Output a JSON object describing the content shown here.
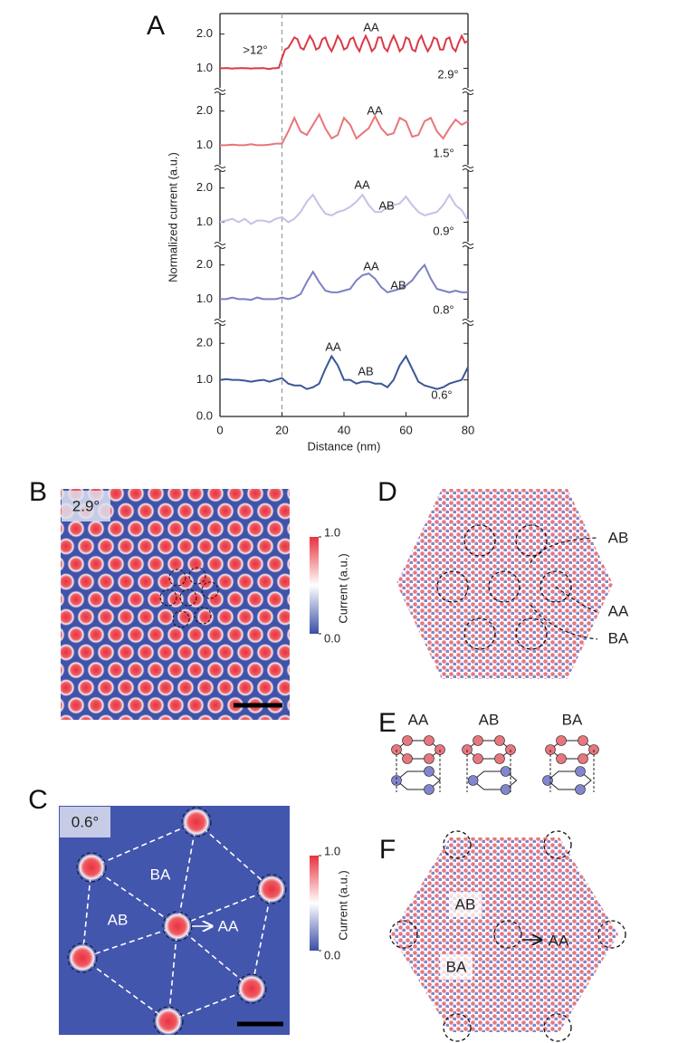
{
  "chart_data": [
    {
      "type": "line",
      "x": [
        0,
        1,
        2,
        3,
        4,
        5,
        6,
        7,
        8,
        9,
        10,
        11,
        12,
        13,
        14,
        15,
        16,
        17,
        18,
        19,
        20,
        21,
        22,
        23,
        24,
        25,
        26,
        27,
        28,
        29,
        30,
        31,
        32,
        33,
        34,
        35,
        36,
        37,
        38,
        39,
        40,
        41,
        42,
        43,
        44,
        45,
        46,
        47,
        48,
        49,
        50,
        51,
        52,
        53,
        54,
        55,
        56,
        57,
        58,
        59,
        60,
        61,
        62,
        63,
        64,
        65,
        66,
        67,
        68,
        69,
        70,
        71,
        72,
        73,
        74,
        75,
        76,
        77,
        78,
        79,
        80
      ],
      "xlim": [
        0,
        80
      ],
      "ylim": [
        0.35,
        2.6
      ],
      "yticks": [
        {
          "value": 1,
          "label": "1.0"
        },
        {
          "value": 2,
          "label": "2.0"
        }
      ],
      "vline_x": 20,
      "series": [
        {
          "name": "2.9°",
          "color": "#d93a48",
          "values": [
            1.0,
            1.0,
            1.01,
            1.0,
            0.99,
            1.0,
            1.0,
            1.01,
            1.0,
            1.0,
            0.99,
            1.0,
            1.0,
            1.0,
            1.01,
            0.99,
            0.98,
            1.0,
            1.0,
            1.02,
            1.3,
            1.55,
            1.6,
            1.75,
            1.9,
            1.85,
            1.6,
            1.55,
            1.75,
            1.95,
            1.8,
            1.55,
            1.6,
            1.85,
            1.9,
            1.65,
            1.5,
            1.7,
            1.95,
            1.8,
            1.55,
            1.6,
            1.85,
            1.9,
            1.65,
            1.5,
            1.75,
            1.95,
            1.75,
            1.5,
            1.6,
            1.9,
            1.9,
            1.6,
            1.5,
            1.75,
            1.95,
            1.75,
            1.5,
            1.6,
            1.9,
            1.85,
            1.55,
            1.5,
            1.8,
            1.95,
            1.7,
            1.5,
            1.65,
            1.9,
            1.85,
            1.55,
            1.55,
            1.85,
            1.9,
            1.6,
            1.5,
            1.75,
            1.95,
            1.75,
            1.8
          ]
        }
      ],
      "annotations": [
        ">12°",
        "AA"
      ]
    },
    {
      "type": "line",
      "x": [
        0,
        2,
        4,
        6,
        8,
        10,
        12,
        14,
        16,
        18,
        20,
        22,
        24,
        26,
        28,
        30,
        32,
        34,
        36,
        38,
        40,
        42,
        44,
        46,
        48,
        50,
        52,
        54,
        56,
        58,
        60,
        62,
        64,
        66,
        68,
        70,
        72,
        74,
        76,
        78,
        80
      ],
      "xlim": [
        0,
        80
      ],
      "ylim": [
        0.35,
        2.6
      ],
      "yticks": [
        {
          "value": 1,
          "label": "1.0"
        },
        {
          "value": 2,
          "label": "2.0"
        }
      ],
      "series": [
        {
          "name": "1.5°",
          "color": "#e8767a",
          "values": [
            1.0,
            1.0,
            1.02,
            1.0,
            1.0,
            1.03,
            1.0,
            1.0,
            1.02,
            1.05,
            1.05,
            1.4,
            1.8,
            1.4,
            1.3,
            1.6,
            1.9,
            1.5,
            1.2,
            1.3,
            1.8,
            1.6,
            1.2,
            1.35,
            1.5,
            1.85,
            1.5,
            1.3,
            1.35,
            1.8,
            1.7,
            1.25,
            1.3,
            1.7,
            1.8,
            1.4,
            1.2,
            1.5,
            1.75,
            1.6,
            1.7
          ]
        }
      ],
      "annotations": [
        "AA"
      ]
    },
    {
      "type": "line",
      "x": [
        0,
        2,
        4,
        6,
        8,
        10,
        12,
        14,
        16,
        18,
        20,
        22,
        24,
        26,
        28,
        30,
        32,
        34,
        36,
        38,
        40,
        42,
        44,
        46,
        48,
        50,
        52,
        54,
        56,
        58,
        60,
        62,
        64,
        66,
        68,
        70,
        72,
        74,
        76,
        78,
        80
      ],
      "xlim": [
        0,
        80
      ],
      "ylim": [
        0.35,
        2.6
      ],
      "yticks": [
        {
          "value": 1,
          "label": "1.0"
        },
        {
          "value": 2,
          "label": "2.0"
        }
      ],
      "series": [
        {
          "name": "0.9°",
          "color": "#c4c2e6",
          "values": [
            1.0,
            1.05,
            1.1,
            1.0,
            1.1,
            0.95,
            1.05,
            1.05,
            1.0,
            1.1,
            1.15,
            1.0,
            1.1,
            1.3,
            1.6,
            1.8,
            1.5,
            1.25,
            1.2,
            1.3,
            1.35,
            1.45,
            1.6,
            1.8,
            1.5,
            1.3,
            1.3,
            1.45,
            1.5,
            1.55,
            1.75,
            1.5,
            1.3,
            1.2,
            1.25,
            1.3,
            1.5,
            1.8,
            1.5,
            1.35,
            1.05
          ]
        }
      ],
      "annotations": [
        "AA",
        "AB"
      ]
    },
    {
      "type": "line",
      "x": [
        0,
        2,
        4,
        6,
        8,
        10,
        12,
        14,
        16,
        18,
        20,
        22,
        24,
        26,
        28,
        30,
        32,
        34,
        36,
        38,
        40,
        42,
        44,
        46,
        48,
        50,
        52,
        54,
        56,
        58,
        60,
        62,
        64,
        66,
        68,
        70,
        72,
        74,
        76,
        78,
        80
      ],
      "xlim": [
        0,
        80
      ],
      "ylim": [
        0.35,
        2.6
      ],
      "yticks": [
        {
          "value": 1,
          "label": "1.0"
        },
        {
          "value": 2,
          "label": "2.0"
        }
      ],
      "series": [
        {
          "name": "0.8°",
          "color": "#7d80c2",
          "values": [
            1.0,
            1.0,
            1.05,
            1.0,
            1.0,
            0.98,
            1.05,
            1.0,
            1.0,
            1.0,
            1.05,
            1.0,
            1.05,
            1.15,
            1.5,
            1.8,
            1.5,
            1.25,
            1.2,
            1.2,
            1.25,
            1.3,
            1.55,
            1.7,
            1.75,
            1.6,
            1.35,
            1.2,
            1.25,
            1.3,
            1.4,
            1.55,
            1.8,
            2.0,
            1.6,
            1.3,
            1.25,
            1.2,
            1.25,
            1.2,
            1.2
          ]
        }
      ],
      "annotations": [
        "AA",
        "AB"
      ]
    },
    {
      "type": "line",
      "x": [
        0,
        2,
        4,
        6,
        8,
        10,
        12,
        14,
        16,
        18,
        20,
        22,
        24,
        26,
        28,
        30,
        32,
        34,
        36,
        38,
        40,
        42,
        44,
        46,
        48,
        50,
        52,
        54,
        56,
        58,
        60,
        62,
        64,
        66,
        68,
        70,
        72,
        74,
        76,
        78,
        80
      ],
      "xlim": [
        0,
        80
      ],
      "ylim": [
        0,
        2.6
      ],
      "yticks": [
        {
          "value": 0,
          "label": "0.0"
        },
        {
          "value": 1,
          "label": "1.0"
        },
        {
          "value": 2,
          "label": "2.0"
        }
      ],
      "xticks": [
        0,
        20,
        40,
        60,
        80
      ],
      "xlabel": "Distance (nm)",
      "series": [
        {
          "name": "0.6°",
          "color": "#3a5796",
          "values": [
            1.0,
            1.02,
            1.0,
            1.0,
            0.98,
            0.95,
            0.98,
            1.0,
            0.95,
            1.0,
            1.05,
            0.9,
            0.85,
            0.85,
            0.75,
            0.8,
            0.9,
            1.3,
            1.65,
            1.4,
            1.0,
            1.0,
            0.9,
            0.95,
            0.95,
            0.9,
            0.9,
            0.8,
            1.0,
            1.4,
            1.65,
            1.3,
            0.95,
            0.85,
            0.8,
            0.75,
            0.8,
            0.9,
            0.95,
            1.0,
            1.35
          ]
        }
      ],
      "annotations": [
        "AA",
        "AB"
      ]
    }
  ],
  "panel_A": {
    "label": "A",
    "ylabel": "Normalized current (a.u.)"
  },
  "panel_B": {
    "label": "B",
    "angle": "2.9°",
    "colorbar": {
      "label": "Current (a.u.)",
      "ticks": [
        {
          "value": 0,
          "label": "0.0"
        },
        {
          "value": 1,
          "label": "1.0"
        }
      ]
    }
  },
  "panel_C": {
    "label": "C",
    "angle": "0.6°",
    "regions": [
      "BA",
      "AB",
      "AA"
    ],
    "colorbar": {
      "label": "Current (a.u.)",
      "ticks": [
        {
          "value": 0,
          "label": "0.0"
        },
        {
          "value": 1,
          "label": "1.0"
        }
      ]
    }
  },
  "panel_D": {
    "label": "D",
    "regions": [
      "AB",
      "AA",
      "BA"
    ]
  },
  "panel_E": {
    "label": "E",
    "stackings": [
      "AA",
      "AB",
      "BA"
    ]
  },
  "panel_F": {
    "label": "F",
    "regions": [
      "AB",
      "BA",
      "AA"
    ]
  }
}
